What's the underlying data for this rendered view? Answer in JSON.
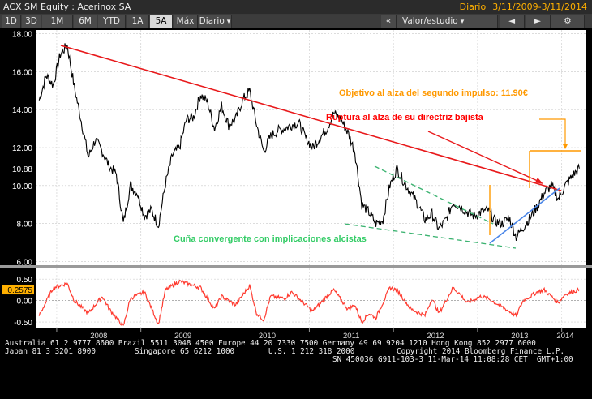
{
  "header": {
    "security": "ACX SM Equity",
    "name": "Acerinox SA",
    "frequency": "Diario",
    "date_range": "3/11/2009-3/11/2014"
  },
  "toolbar": {
    "periods": [
      "1D",
      "3D",
      "1M",
      "6M",
      "YTD",
      "1A",
      "5A",
      "Máx"
    ],
    "active_period": "5A",
    "interval": "Diario",
    "nav_back": "«",
    "study": "Valor/estudio",
    "nav_left": "◄",
    "nav_right": "►",
    "settings": "⚙"
  },
  "chart_data": [
    {
      "type": "line",
      "series": [
        {
          "name": "price",
          "color": "#000000"
        }
      ],
      "ylim": [
        5.8,
        18.2
      ],
      "y_ticks": [
        "18.00",
        "16.00",
        "14.00",
        "12.00",
        "10.88",
        "10.00",
        "8.00",
        "6.00"
      ],
      "last_value": "10.88",
      "anchor_points": [
        [
          "2007-10",
          14.5
        ],
        [
          "2007-11",
          15.8
        ],
        [
          "2007-12",
          15.3
        ],
        [
          "2008-01",
          16.9
        ],
        [
          "2008-02",
          17.4
        ],
        [
          "2008-03",
          15.2
        ],
        [
          "2008-04",
          13.4
        ],
        [
          "2008-05",
          11.5
        ],
        [
          "2008-06",
          12.4
        ],
        [
          "2008-07",
          11.8
        ],
        [
          "2008-08",
          11.0
        ],
        [
          "2008-09",
          10.6
        ],
        [
          "2008-10",
          8.0
        ],
        [
          "2008-11",
          10.0
        ],
        [
          "2008-12",
          9.6
        ],
        [
          "2009-01",
          8.4
        ],
        [
          "2009-02",
          8.7
        ],
        [
          "2009-03",
          7.9
        ],
        [
          "2009-04",
          10.1
        ],
        [
          "2009-05",
          11.6
        ],
        [
          "2009-06",
          12.0
        ],
        [
          "2009-07",
          13.5
        ],
        [
          "2009-08",
          13.6
        ],
        [
          "2009-09",
          14.8
        ],
        [
          "2009-10",
          14.4
        ],
        [
          "2009-11",
          13.0
        ],
        [
          "2009-12",
          14.2
        ],
        [
          "2010-01",
          13.2
        ],
        [
          "2010-02",
          13.5
        ],
        [
          "2010-03",
          14.5
        ],
        [
          "2010-04",
          15.0
        ],
        [
          "2010-05",
          13.2
        ],
        [
          "2010-06",
          11.8
        ],
        [
          "2010-07",
          12.6
        ],
        [
          "2010-08",
          12.9
        ],
        [
          "2010-09",
          13.0
        ],
        [
          "2010-10",
          13.2
        ],
        [
          "2010-11",
          13.3
        ],
        [
          "2010-12",
          12.5
        ],
        [
          "2011-01",
          12.0
        ],
        [
          "2011-02",
          12.5
        ],
        [
          "2011-03",
          13.0
        ],
        [
          "2011-04",
          13.8
        ],
        [
          "2011-05",
          13.5
        ],
        [
          "2011-06",
          12.8
        ],
        [
          "2011-07",
          11.8
        ],
        [
          "2011-08",
          9.0
        ],
        [
          "2011-09",
          8.6
        ],
        [
          "2011-10",
          8.0
        ],
        [
          "2011-11",
          8.2
        ],
        [
          "2011-12",
          10.0
        ],
        [
          "2012-01",
          10.9
        ],
        [
          "2012-02",
          10.2
        ],
        [
          "2012-03",
          9.6
        ],
        [
          "2012-04",
          9.0
        ],
        [
          "2012-05",
          8.2
        ],
        [
          "2012-06",
          8.5
        ],
        [
          "2012-07",
          7.7
        ],
        [
          "2012-08",
          8.2
        ],
        [
          "2012-09",
          9.1
        ],
        [
          "2012-10",
          8.9
        ],
        [
          "2012-11",
          8.6
        ],
        [
          "2012-12",
          8.4
        ],
        [
          "2013-01",
          8.6
        ],
        [
          "2013-02",
          8.7
        ],
        [
          "2013-03",
          8.1
        ],
        [
          "2013-04",
          8.0
        ],
        [
          "2013-05",
          8.3
        ],
        [
          "2013-06",
          7.3
        ],
        [
          "2013-07",
          7.8
        ],
        [
          "2013-08",
          8.3
        ],
        [
          "2013-09",
          8.9
        ],
        [
          "2013-10",
          9.6
        ],
        [
          "2013-11",
          10.0
        ],
        [
          "2013-12",
          9.3
        ],
        [
          "2014-01",
          10.0
        ],
        [
          "2014-02",
          10.5
        ],
        [
          "2014-03",
          10.9
        ]
      ]
    },
    {
      "type": "line",
      "series": [
        {
          "name": "oscillator",
          "color": "#ff3b30"
        }
      ],
      "ylim": [
        -0.65,
        0.75
      ],
      "y_ticks": [
        "0.50",
        "0.2575",
        "0.00",
        "-0.50"
      ],
      "last_value": "0.2575",
      "anchor_points": [
        [
          "2007-10",
          -0.35
        ],
        [
          "2007-12",
          0.3
        ],
        [
          "2008-02",
          0.4
        ],
        [
          "2008-03",
          0.0
        ],
        [
          "2008-05",
          -0.3
        ],
        [
          "2008-07",
          0.1
        ],
        [
          "2008-08",
          -0.2
        ],
        [
          "2008-10",
          -0.6
        ],
        [
          "2008-11",
          0.05
        ],
        [
          "2009-01",
          0.2
        ],
        [
          "2009-03",
          -0.55
        ],
        [
          "2009-04",
          0.25
        ],
        [
          "2009-06",
          0.45
        ],
        [
          "2009-08",
          0.35
        ],
        [
          "2009-09",
          0.3
        ],
        [
          "2009-11",
          -0.2
        ],
        [
          "2009-12",
          0.1
        ],
        [
          "2010-02",
          -0.1
        ],
        [
          "2010-04",
          0.35
        ],
        [
          "2010-05",
          -0.3
        ],
        [
          "2010-06",
          -0.45
        ],
        [
          "2010-07",
          0.1
        ],
        [
          "2010-09",
          0.05
        ],
        [
          "2010-10",
          0.2
        ],
        [
          "2010-12",
          -0.1
        ],
        [
          "2011-01",
          -0.25
        ],
        [
          "2011-03",
          0.1
        ],
        [
          "2011-04",
          0.25
        ],
        [
          "2011-06",
          -0.2
        ],
        [
          "2011-07",
          -0.1
        ],
        [
          "2011-08",
          -0.5
        ],
        [
          "2011-09",
          -0.3
        ],
        [
          "2011-10",
          -0.4
        ],
        [
          "2011-12",
          0.3
        ],
        [
          "2012-01",
          0.25
        ],
        [
          "2012-03",
          -0.2
        ],
        [
          "2012-05",
          -0.35
        ],
        [
          "2012-06",
          0.05
        ],
        [
          "2012-07",
          -0.3
        ],
        [
          "2012-09",
          0.3
        ],
        [
          "2012-10",
          0.15
        ],
        [
          "2012-11",
          -0.05
        ],
        [
          "2013-01",
          0.1
        ],
        [
          "2013-02",
          0.05
        ],
        [
          "2013-04",
          -0.15
        ],
        [
          "2013-06",
          -0.35
        ],
        [
          "2013-07",
          0.0
        ],
        [
          "2013-09",
          0.2
        ],
        [
          "2013-10",
          0.25
        ],
        [
          "2013-12",
          -0.05
        ],
        [
          "2014-01",
          0.15
        ],
        [
          "2014-02",
          0.2
        ],
        [
          "2014-03",
          0.2575
        ]
      ]
    }
  ],
  "x_axis": {
    "year_labels": [
      "2008",
      "2009",
      "2010",
      "2011",
      "2012",
      "2013",
      "2014"
    ]
  },
  "annotations": {
    "target": {
      "text": "Objetivo al alza del segundo impulso: 11.90€",
      "color": "#ff9900"
    },
    "breakout": {
      "text": "Ruptura al alza de su directriz bajista",
      "color": "#ff0000"
    },
    "wedge": {
      "text": "Cuña convergente con implicaciones alcistas",
      "color": "#33cc66"
    },
    "colors": {
      "trendline": "#e8191b",
      "wedge": "#3cb371",
      "support": "#4a86e8",
      "target": "#ff9900"
    }
  },
  "footer": {
    "line1": "Australia 61 2 9777 8600 Brazil 5511 3048 4500 Europe 44 20 7330 7500 Germany 49 69 9204 1210 Hong Kong 852 2977 6000",
    "line2a": "Japan 81 3 3201 8900",
    "line2b": "Singapore 65 6212 1000",
    "line2c": "U.S. 1 212 318 2000",
    "line2d": "Copyright 2014 Bloomberg Finance L.P.",
    "line3": "SN 450036 G911-103-3 11-Mar-14 11:08:28 CET  GMT+1:00"
  }
}
